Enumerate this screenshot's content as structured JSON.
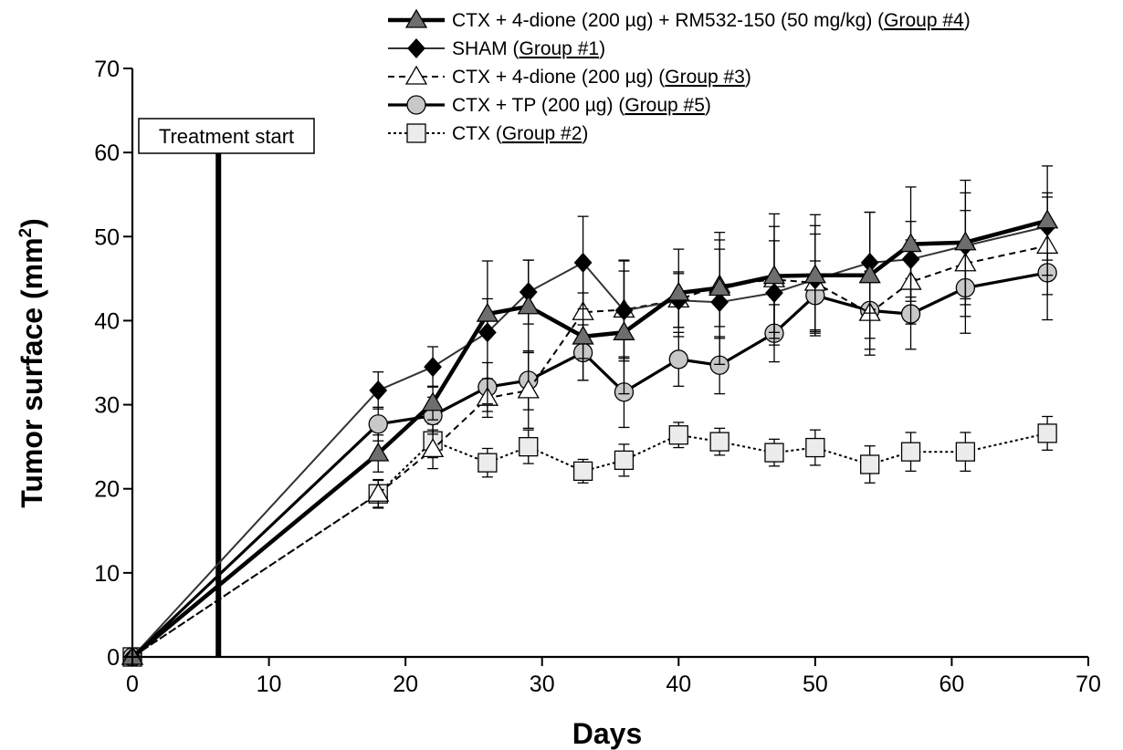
{
  "chart_data": {
    "type": "line",
    "xlabel": "Days",
    "ylabel": "Tumor surface (mm",
    "ylabel_sup": "2",
    "ylabel_close": ")",
    "xlim": [
      0,
      70
    ],
    "ylim": [
      0,
      70
    ],
    "xticks": [
      0,
      10,
      20,
      30,
      40,
      50,
      60,
      70
    ],
    "yticks": [
      0,
      10,
      20,
      30,
      40,
      50,
      60,
      70
    ],
    "grid": false,
    "legend_position": "top-right",
    "annotation": {
      "label": "Treatment start",
      "x": 6.3
    },
    "series": [
      {
        "name": "CTX + 4-dione (200 µg) + RM532-150 (50 mg/kg)",
        "group": "Group #4",
        "marker": "triangle",
        "fill": "#6e6e6e",
        "line": "solid-thick",
        "x": [
          0,
          18,
          22,
          26,
          29,
          33,
          36,
          40,
          43,
          47,
          50,
          54,
          57,
          61,
          67
        ],
        "y": [
          0,
          24.2,
          30.2,
          40.8,
          41.7,
          38.1,
          38.6,
          43.3,
          43.9,
          45.3,
          45.4,
          45.4,
          49.1,
          49.3,
          51.9
        ],
        "err": [
          0,
          2.2,
          2.0,
          1.8,
          5.5,
          5.2,
          7.3,
          5.2,
          4.6,
          7.4,
          7.2,
          7.5,
          6.8,
          7.4,
          6.5
        ]
      },
      {
        "name": "SHAM",
        "group": "Group #1",
        "marker": "diamond",
        "fill": "#000000",
        "line": "solid-thin",
        "x": [
          0,
          18,
          22,
          26,
          29,
          33,
          36,
          40,
          43,
          47,
          50,
          54,
          57,
          61,
          67
        ],
        "y": [
          0,
          31.7,
          34.5,
          38.6,
          43.4,
          46.9,
          41.2,
          42.4,
          42.2,
          43.3,
          44.9,
          46.9,
          47.3,
          48.9,
          51.2
        ],
        "err": [
          0,
          2.2,
          2.4,
          8.5,
          3.8,
          5.5,
          6.0,
          3.2,
          7.4,
          6.2,
          6.4,
          6.0,
          4.5,
          6.3,
          4.0
        ]
      },
      {
        "name": "CTX + 4-dione (200 µg)",
        "group": "Group #3",
        "marker": "triangle",
        "fill": "#ffffff",
        "line": "dashed",
        "x": [
          0,
          18,
          22,
          26,
          29,
          33,
          36,
          40,
          43,
          47,
          50,
          54,
          57,
          61,
          67
        ],
        "y": [
          0,
          19.4,
          24.7,
          30.8,
          31.7,
          41.0,
          41.3,
          42.5,
          44.2,
          44.9,
          44.5,
          40.9,
          44.6,
          46.8,
          48.9
        ],
        "err": [
          0,
          1.6,
          2.3,
          2.3,
          4.5,
          5.5,
          5.8,
          3.3,
          6.3,
          6.3,
          5.8,
          5.0,
          5.0,
          6.3,
          5.8
        ]
      },
      {
        "name": "CTX + TP (200 µg)",
        "group": "Group #5",
        "marker": "circle",
        "fill": "#c8c8c8",
        "line": "solid-medium",
        "x": [
          0,
          18,
          22,
          26,
          29,
          33,
          36,
          40,
          43,
          47,
          50,
          54,
          57,
          61,
          67
        ],
        "y": [
          0,
          27.7,
          28.7,
          32.1,
          32.9,
          36.2,
          31.5,
          35.4,
          34.7,
          38.5,
          43.0,
          41.2,
          40.8,
          43.9,
          45.7
        ],
        "err": [
          0,
          2.0,
          2.2,
          2.9,
          3.5,
          3.3,
          4.2,
          3.2,
          3.4,
          3.4,
          4.1,
          4.6,
          4.2,
          5.4,
          5.6
        ]
      },
      {
        "name": "CTX",
        "group": "Group #2",
        "marker": "square",
        "fill": "#ececec",
        "line": "dotted",
        "x": [
          0,
          18,
          22,
          26,
          29,
          33,
          36,
          40,
          43,
          47,
          50,
          54,
          57,
          61,
          67
        ],
        "y": [
          0,
          19.4,
          25.7,
          23.1,
          25.0,
          22.1,
          23.4,
          26.4,
          25.6,
          24.3,
          24.9,
          22.9,
          24.4,
          24.4,
          26.6
        ],
        "err": [
          0,
          1.7,
          2.0,
          1.7,
          2.0,
          1.4,
          1.9,
          1.5,
          1.6,
          1.6,
          2.1,
          2.2,
          2.3,
          2.3,
          2.0
        ]
      }
    ]
  }
}
